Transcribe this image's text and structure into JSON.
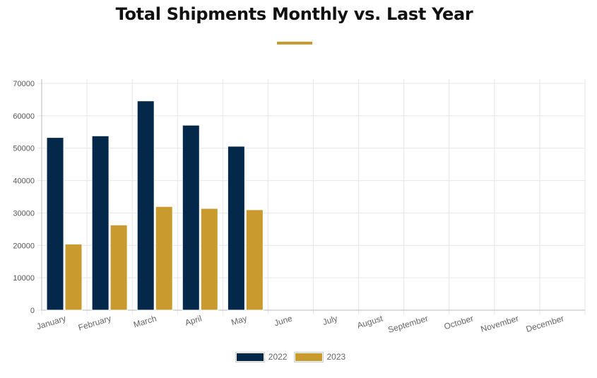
{
  "chart_data": {
    "type": "bar",
    "title": "Total Shipments Monthly vs. Last Year",
    "categories": [
      "January",
      "February",
      "March",
      "April",
      "May",
      "June",
      "July",
      "August",
      "September",
      "October",
      "November",
      "December"
    ],
    "series": [
      {
        "name": "2022",
        "color": "#04284a",
        "values": [
          53300,
          53800,
          64600,
          57100,
          50600,
          null,
          null,
          null,
          null,
          null,
          null,
          null
        ]
      },
      {
        "name": "2023",
        "color": "#c99a2e",
        "values": [
          20400,
          26300,
          32000,
          31400,
          31000,
          null,
          null,
          null,
          null,
          null,
          null,
          null
        ]
      }
    ],
    "ylim": [
      0,
      70000
    ],
    "yticks": [
      0,
      10000,
      20000,
      30000,
      40000,
      50000,
      60000,
      70000
    ],
    "grid": true,
    "legend_position": "bottom",
    "accent_color": "#c99a2e"
  }
}
